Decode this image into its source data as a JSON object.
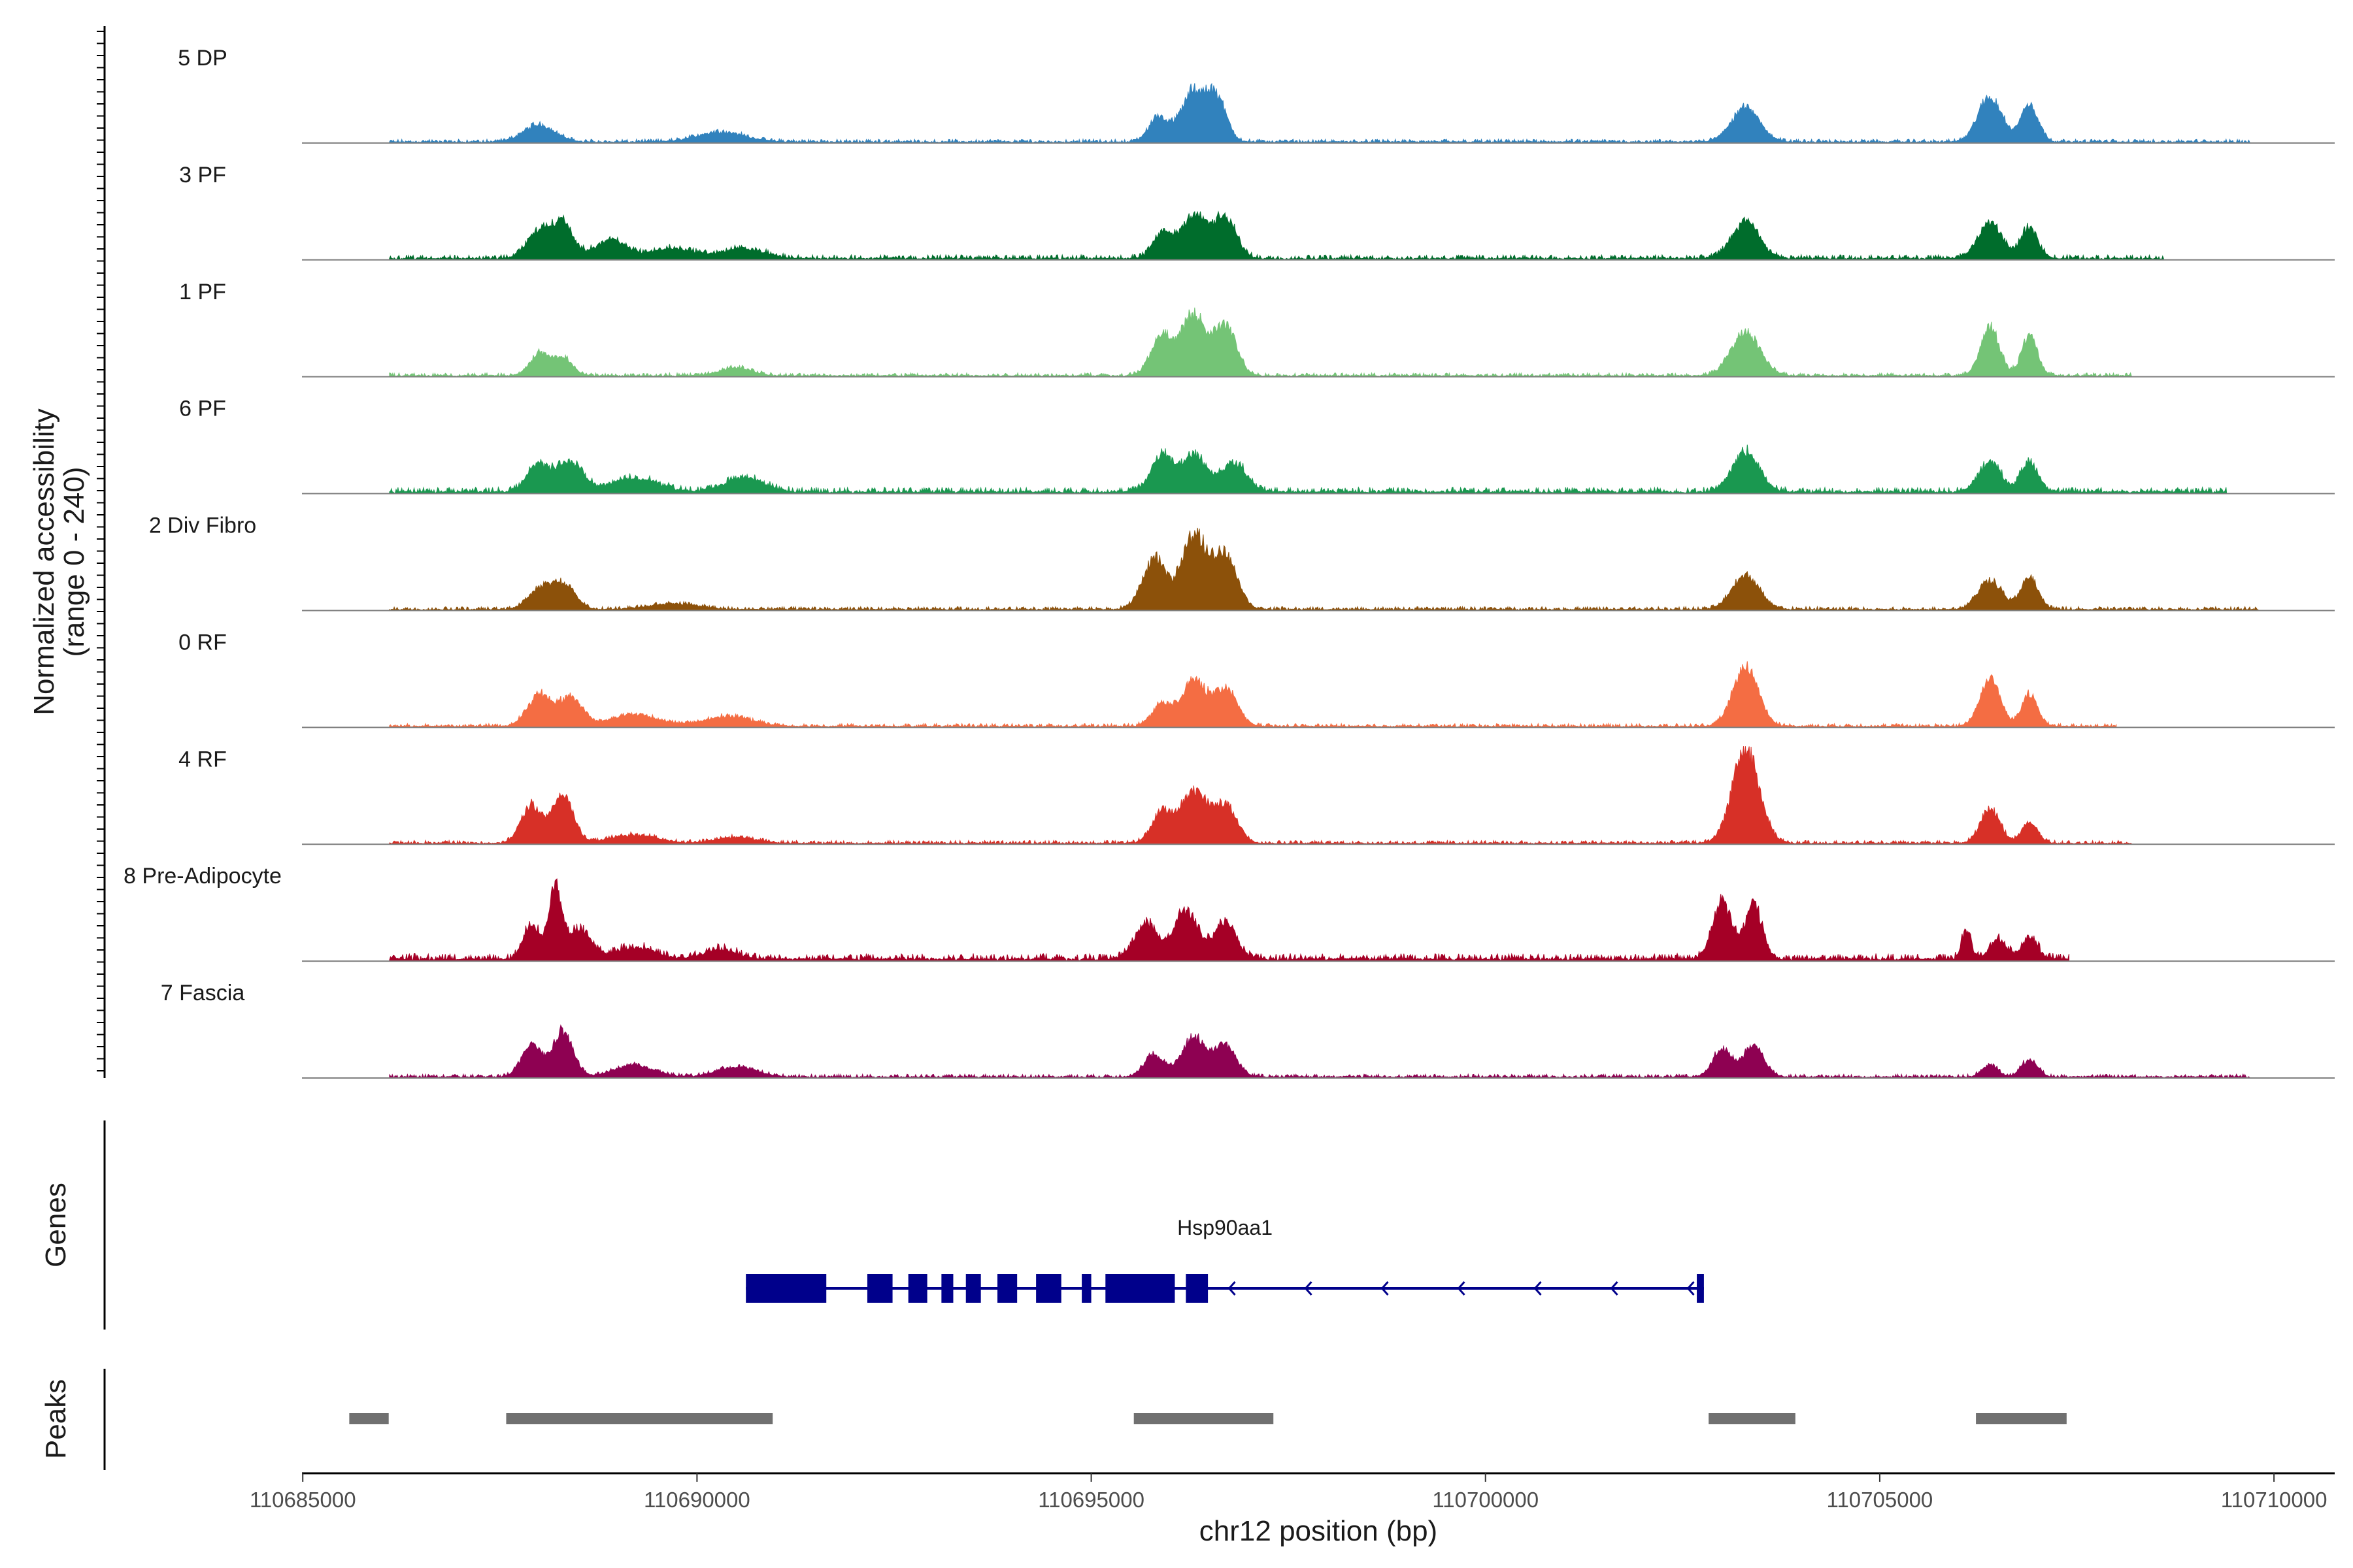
{
  "chart_data": {
    "type": "area",
    "title": "",
    "ylabel": "Normalized accessibility",
    "ylabel_range": "(range 0 - 240)",
    "y_range": [
      0,
      240
    ],
    "xlabel": "chr12 position (bp)",
    "x_range": [
      110684990,
      110710770
    ],
    "x_ticks": [
      110685000,
      110690000,
      110695000,
      110700000,
      110705000,
      110710000
    ],
    "tracks": [
      {
        "name": "5 DP",
        "color": "#3182bd",
        "peaks": [
          [
            110688000,
            0.17,
            200
          ],
          [
            110690300,
            0.1,
            300
          ],
          [
            110695850,
            0.25,
            120
          ],
          [
            110696300,
            0.52,
            160
          ],
          [
            110696600,
            0.4,
            120
          ],
          [
            110703300,
            0.35,
            180
          ],
          [
            110706400,
            0.46,
            150
          ],
          [
            110706900,
            0.38,
            110
          ]
        ],
        "noise": 0.03,
        "start": 110686100,
        "end": 110709700
      },
      {
        "name": "3 PF",
        "color": "#006d2c",
        "peaks": [
          [
            110688000,
            0.28,
            150
          ],
          [
            110688300,
            0.34,
            130
          ],
          [
            110688900,
            0.18,
            200
          ],
          [
            110689700,
            0.1,
            300
          ],
          [
            110690600,
            0.1,
            250
          ],
          [
            110695900,
            0.25,
            120
          ],
          [
            110696300,
            0.45,
            160
          ],
          [
            110696700,
            0.4,
            140
          ],
          [
            110703300,
            0.37,
            170
          ],
          [
            110706400,
            0.36,
            150
          ],
          [
            110706900,
            0.3,
            110
          ]
        ],
        "noise": 0.04,
        "start": 110686100,
        "end": 110708600
      },
      {
        "name": "1 PF",
        "color": "#74c476",
        "peaks": [
          [
            110688000,
            0.22,
            120
          ],
          [
            110688300,
            0.18,
            120
          ],
          [
            110690500,
            0.08,
            200
          ],
          [
            110695900,
            0.4,
            140
          ],
          [
            110696300,
            0.62,
            150
          ],
          [
            110696700,
            0.5,
            140
          ],
          [
            110703300,
            0.45,
            180
          ],
          [
            110706400,
            0.48,
            120
          ],
          [
            110706900,
            0.4,
            100
          ]
        ],
        "noise": 0.03,
        "start": 110686100,
        "end": 110708200
      },
      {
        "name": "6 PF",
        "color": "#1a9850",
        "peaks": [
          [
            110688000,
            0.28,
            150
          ],
          [
            110688400,
            0.3,
            150
          ],
          [
            110689200,
            0.14,
            300
          ],
          [
            110690600,
            0.14,
            250
          ],
          [
            110695900,
            0.36,
            140
          ],
          [
            110696300,
            0.38,
            150
          ],
          [
            110696800,
            0.3,
            160
          ],
          [
            110703300,
            0.4,
            170
          ],
          [
            110706400,
            0.3,
            140
          ],
          [
            110706900,
            0.3,
            110
          ]
        ],
        "noise": 0.05,
        "start": 110686100,
        "end": 110709400
      },
      {
        "name": "2 Div Fibro",
        "color": "#8c510a",
        "peaks": [
          [
            110688000,
            0.2,
            150
          ],
          [
            110688300,
            0.25,
            150
          ],
          [
            110689700,
            0.06,
            300
          ],
          [
            110695800,
            0.5,
            150
          ],
          [
            110696300,
            0.75,
            160
          ],
          [
            110696700,
            0.55,
            150
          ],
          [
            110703300,
            0.35,
            170
          ],
          [
            110706400,
            0.3,
            150
          ],
          [
            110706900,
            0.32,
            110
          ]
        ],
        "noise": 0.03,
        "start": 110686100,
        "end": 110709800
      },
      {
        "name": "0 RF",
        "color": "#f46d43",
        "peaks": [
          [
            110688000,
            0.32,
            150
          ],
          [
            110688400,
            0.28,
            150
          ],
          [
            110689200,
            0.12,
            300
          ],
          [
            110690400,
            0.1,
            300
          ],
          [
            110695900,
            0.22,
            130
          ],
          [
            110696300,
            0.45,
            150
          ],
          [
            110696700,
            0.38,
            150
          ],
          [
            110703300,
            0.6,
            160
          ],
          [
            110706400,
            0.48,
            130
          ],
          [
            110706900,
            0.32,
            100
          ]
        ],
        "noise": 0.03,
        "start": 110686100,
        "end": 110708000
      },
      {
        "name": "4 RF",
        "color": "#d73027",
        "peaks": [
          [
            110687900,
            0.38,
            130
          ],
          [
            110688300,
            0.5,
            130
          ],
          [
            110689200,
            0.08,
            300
          ],
          [
            110690500,
            0.06,
            250
          ],
          [
            110695900,
            0.32,
            130
          ],
          [
            110696300,
            0.52,
            160
          ],
          [
            110696700,
            0.38,
            150
          ],
          [
            110703300,
            0.95,
            170
          ],
          [
            110706400,
            0.35,
            120
          ],
          [
            110706900,
            0.22,
            100
          ]
        ],
        "noise": 0.03,
        "start": 110686100,
        "end": 110708200
      },
      {
        "name": "8 Pre-Adipocyte",
        "color": "#a50026",
        "peaks": [
          [
            110687900,
            0.35,
            100
          ],
          [
            110688200,
            0.7,
            80
          ],
          [
            110688500,
            0.3,
            150
          ],
          [
            110689200,
            0.12,
            250
          ],
          [
            110690300,
            0.1,
            200
          ],
          [
            110695700,
            0.35,
            150
          ],
          [
            110696200,
            0.48,
            150
          ],
          [
            110696700,
            0.38,
            140
          ],
          [
            110703000,
            0.58,
            120
          ],
          [
            110703400,
            0.55,
            110
          ],
          [
            110706100,
            0.3,
            60
          ],
          [
            110706500,
            0.2,
            100
          ],
          [
            110706900,
            0.22,
            100
          ]
        ],
        "noise": 0.06,
        "start": 110686100,
        "end": 110707400
      },
      {
        "name": "7 Fascia",
        "color": "#8e0152",
        "peaks": [
          [
            110687900,
            0.32,
            130
          ],
          [
            110688300,
            0.45,
            130
          ],
          [
            110689200,
            0.12,
            250
          ],
          [
            110690500,
            0.1,
            250
          ],
          [
            110695800,
            0.22,
            130
          ],
          [
            110696300,
            0.4,
            150
          ],
          [
            110696700,
            0.32,
            140
          ],
          [
            110703000,
            0.28,
            120
          ],
          [
            110703400,
            0.32,
            130
          ],
          [
            110706400,
            0.12,
            100
          ],
          [
            110706900,
            0.18,
            100
          ]
        ],
        "noise": 0.03,
        "start": 110686100,
        "end": 110709700
      }
    ],
    "genes_label": "Genes",
    "genes": [
      {
        "name": "Hsp90aa1",
        "start": 110690620,
        "end": 110702770,
        "strand": "-",
        "color": "#00008b",
        "exons": [
          [
            110690620,
            110691640
          ],
          [
            110692160,
            110692480
          ],
          [
            110692680,
            110692920
          ],
          [
            110693100,
            110693250
          ],
          [
            110693410,
            110693600
          ],
          [
            110693810,
            110694060
          ],
          [
            110694300,
            110694620
          ],
          [
            110694880,
            110695000
          ],
          [
            110695180,
            110696060
          ],
          [
            110696200,
            110696480
          ],
          [
            110702680,
            110702770
          ]
        ]
      }
    ],
    "peaks_label": "Peaks",
    "peaks_color": "#707070",
    "peak_regions": [
      [
        110685590,
        110686090
      ],
      [
        110687580,
        110690960
      ],
      [
        110695540,
        110697310
      ],
      [
        110702830,
        110703930
      ],
      [
        110706220,
        110707370
      ]
    ]
  }
}
